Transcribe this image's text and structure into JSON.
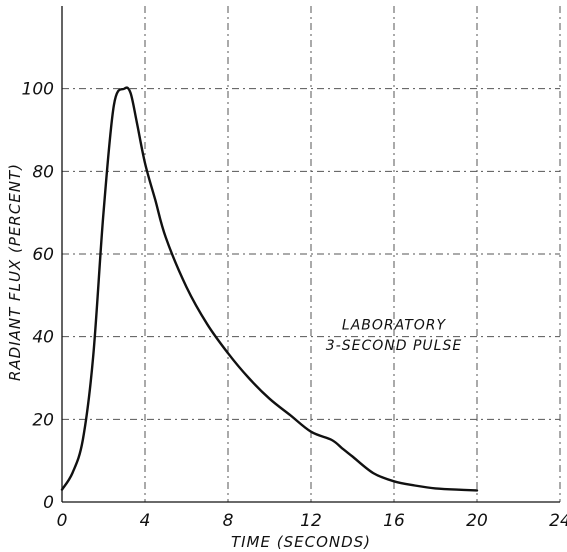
{
  "chart_data": {
    "type": "line",
    "title": "",
    "xlabel": "TIME (SECONDS)",
    "ylabel": "RADIANT FLUX (PERCENT)",
    "xlim": [
      0,
      24
    ],
    "ylim": [
      0,
      120
    ],
    "x_ticks": [
      0,
      4,
      8,
      12,
      16,
      20,
      24
    ],
    "x_tick_labels": [
      "0",
      "4",
      "8",
      "12",
      "16",
      "20",
      "24"
    ],
    "y_ticks": [
      0,
      20,
      40,
      60,
      80,
      100
    ],
    "y_tick_labels": [
      "0",
      "20",
      "40",
      "60",
      "80",
      "100"
    ],
    "grid": true,
    "annotation": [
      "LABORATORY",
      "3-SECOND PULSE"
    ],
    "series": [
      {
        "x": [
          0,
          0.5,
          1.0,
          1.5,
          2.0,
          2.5,
          3.0,
          3.3,
          3.6,
          4.0,
          4.5,
          5.0,
          6.0,
          7.0,
          8.0,
          9.0,
          10.0,
          11.0,
          12.0,
          13.0,
          13.5,
          14.0,
          15.0,
          16.0,
          17.0,
          18.0,
          19.0,
          20.0
        ],
        "y": [
          3,
          7,
          15,
          35,
          70,
          96,
          100,
          99,
          92,
          82,
          73,
          64,
          52,
          43,
          36,
          30,
          25,
          21,
          17,
          15,
          13,
          11,
          7,
          5,
          4,
          3.3,
          3,
          2.8
        ]
      }
    ]
  }
}
